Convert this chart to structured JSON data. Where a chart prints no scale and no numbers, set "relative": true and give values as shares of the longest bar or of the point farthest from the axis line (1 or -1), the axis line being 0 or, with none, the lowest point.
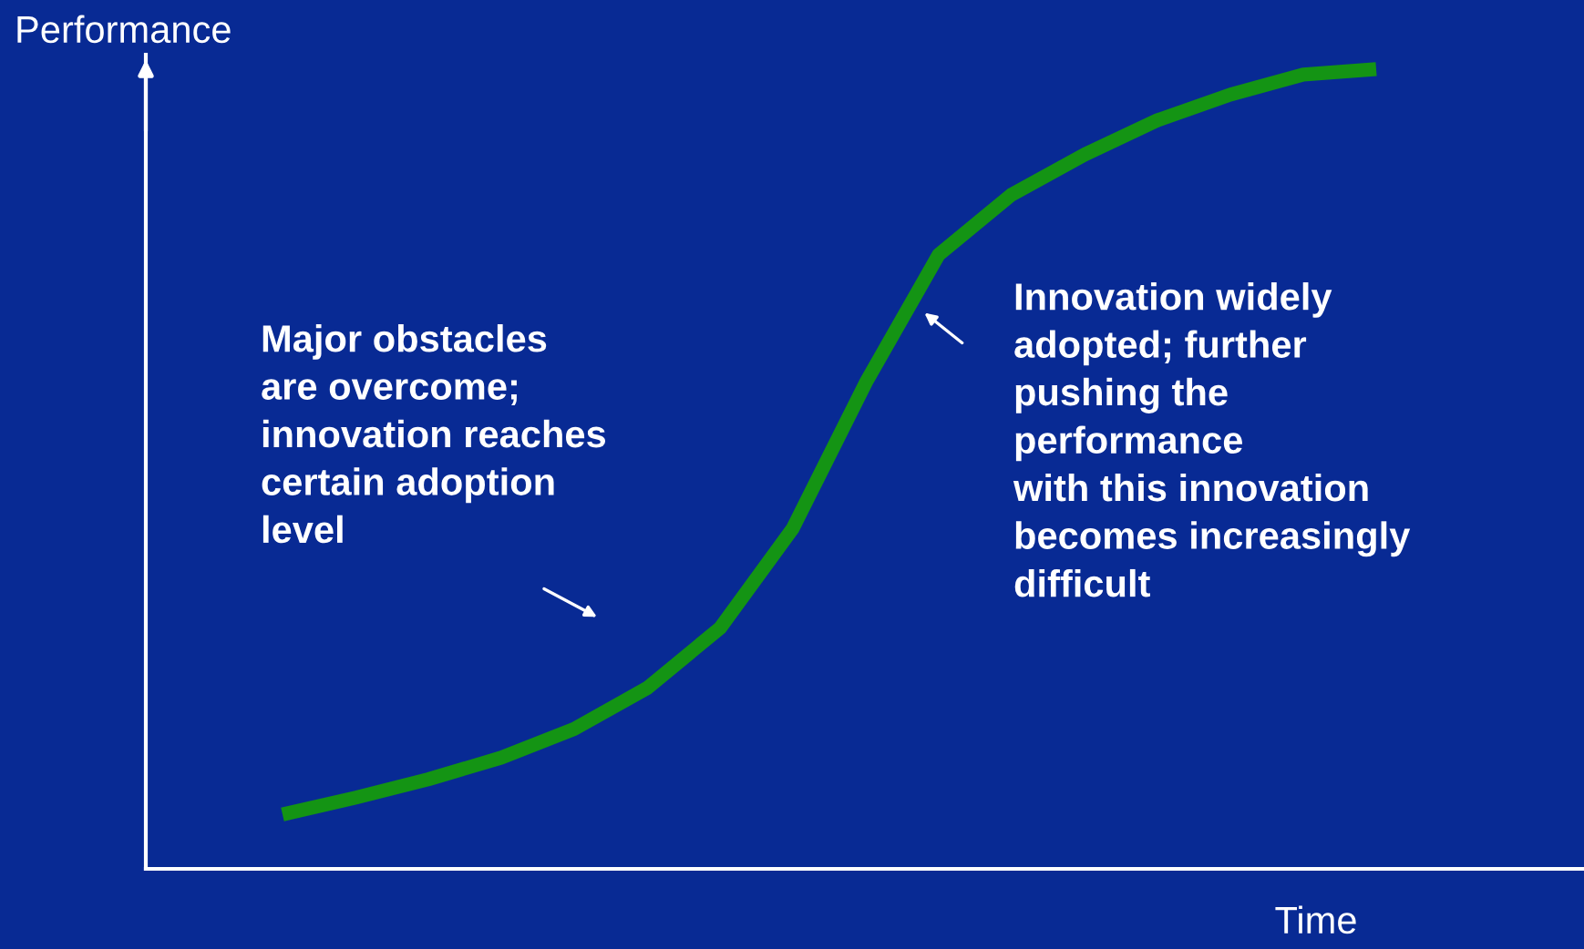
{
  "chart_data": {
    "type": "line",
    "relative": true,
    "xlabel": "Time",
    "ylabel": "Performance",
    "categories": [
      null,
      null,
      null,
      null,
      null,
      null,
      null,
      null,
      null,
      null,
      null,
      null,
      null,
      null,
      null,
      null
    ],
    "series": [
      {
        "color": "#149414",
        "values": [
          0.068,
          0.089,
          0.112,
          0.139,
          0.175,
          0.226,
          0.301,
          0.426,
          0.608,
          0.768,
          0.843,
          0.893,
          0.936,
          0.968,
          0.993,
          1.0
        ]
      }
    ],
    "annotations": [
      "Major obstacles\nare overcome;\ninnovation reaches\ncertain adoption\nlevel",
      "Innovation widely\nadopted; further\npushing the\nperformance\nwith this innovation\nbecomes increasingly\ndifficult"
    ],
    "grid": false,
    "legend": false,
    "marker": "none",
    "line_style": "solid"
  }
}
